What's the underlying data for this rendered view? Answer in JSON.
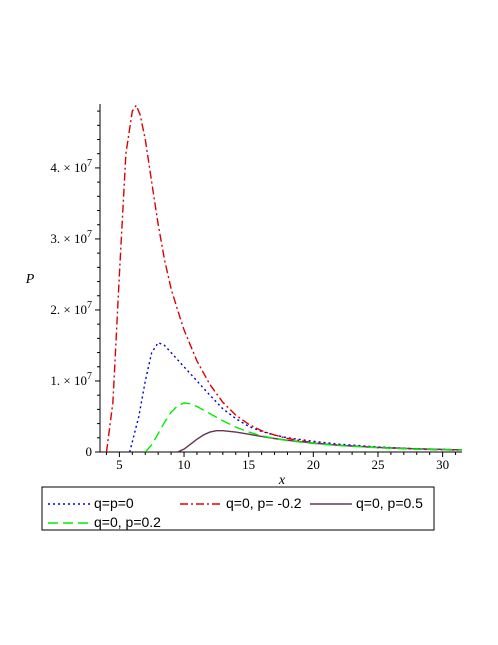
{
  "chart_data": {
    "type": "line",
    "title": "",
    "xlabel": "x",
    "ylabel": "P",
    "xlim": [
      3.5,
      31.5
    ],
    "ylim": [
      0,
      49000000
    ],
    "x_ticks": [
      5,
      10,
      15,
      20,
      25,
      30
    ],
    "x_tick_labels": [
      "5",
      "10",
      "15",
      "20",
      "25",
      "30"
    ],
    "y_ticks": [
      0,
      10000000,
      20000000,
      30000000,
      40000000
    ],
    "y_tick_labels": [
      {
        "mant": "0",
        "exp": ""
      },
      {
        "mant": "1. × 10",
        "exp": "7"
      },
      {
        "mant": "2. × 10",
        "exp": "7"
      },
      {
        "mant": "3. × 10",
        "exp": "7"
      },
      {
        "mant": "4. × 10",
        "exp": "7"
      }
    ],
    "grid": false,
    "legend_position": "bottom",
    "series": [
      {
        "name": "q=p=0",
        "color": "#0000cc",
        "dash": "dotted",
        "x": [
          5.8,
          6.5,
          7.0,
          7.5,
          8.0,
          8.5,
          9.0,
          10.0,
          11.0,
          12.0,
          13.0,
          14.0,
          15.0,
          16.0,
          17.0,
          18.0,
          20.0,
          22.0,
          25.0,
          28.0,
          31.5
        ],
        "y": [
          0,
          5000000,
          10000000,
          14000000,
          15400000,
          15000000,
          14000000,
          12000000,
          10000000,
          8000000,
          6100000,
          4700000,
          3600000,
          2900000,
          2400000,
          2000000,
          1500000,
          1100000,
          700000,
          450000,
          300000
        ]
      },
      {
        "name": "q=0, p= -0.2",
        "color": "#dd0000",
        "dash": "dashdot",
        "x": [
          4.0,
          4.5,
          5.0,
          5.5,
          6.0,
          6.3,
          6.6,
          7.0,
          7.5,
          8.0,
          8.5,
          9.0,
          9.5,
          10.0,
          11.0,
          12.0,
          13.0,
          14.0,
          15.0,
          16.0,
          17.0,
          18.0,
          20.0,
          22.0,
          25.0,
          28.0,
          31.5
        ],
        "y": [
          0,
          7000000,
          25000000,
          42000000,
          48000000,
          48800000,
          47500000,
          44000000,
          38000000,
          32000000,
          27000000,
          23000000,
          20000000,
          17200000,
          12800000,
          9500000,
          7000000,
          5200000,
          3900000,
          3000000,
          2400000,
          1900000,
          1300000,
          950000,
          600000,
          400000,
          260000
        ]
      },
      {
        "name": "q=0, p=0.5",
        "color": "#663355",
        "dash": "solid",
        "x": [
          9.5,
          10.0,
          10.5,
          11.0,
          11.5,
          12.0,
          12.5,
          13.0,
          14.0,
          15.0,
          16.0,
          17.0,
          18.0,
          20.0,
          22.0,
          25.0,
          28.0,
          31.5
        ],
        "y": [
          0,
          400000,
          1100000,
          1800000,
          2400000,
          2800000,
          3000000,
          3000000,
          2800000,
          2500000,
          2200000,
          1900000,
          1650000,
          1250000,
          950000,
          650000,
          450000,
          310000
        ]
      },
      {
        "name": "q=0, p=0.2",
        "color": "#00ee00",
        "dash": "dashed",
        "x": [
          7.0,
          7.5,
          8.0,
          8.5,
          9.0,
          9.5,
          10.0,
          10.5,
          11.0,
          12.0,
          13.0,
          14.0,
          15.0,
          16.0,
          17.0,
          18.0,
          20.0,
          22.0,
          25.0,
          28.0,
          31.5
        ],
        "y": [
          0,
          1000000,
          2600000,
          4200000,
          5600000,
          6500000,
          6900000,
          6800000,
          6400000,
          5400000,
          4400000,
          3500000,
          2800000,
          2300000,
          1900000,
          1600000,
          1200000,
          900000,
          600000,
          400000,
          280000
        ]
      }
    ]
  }
}
